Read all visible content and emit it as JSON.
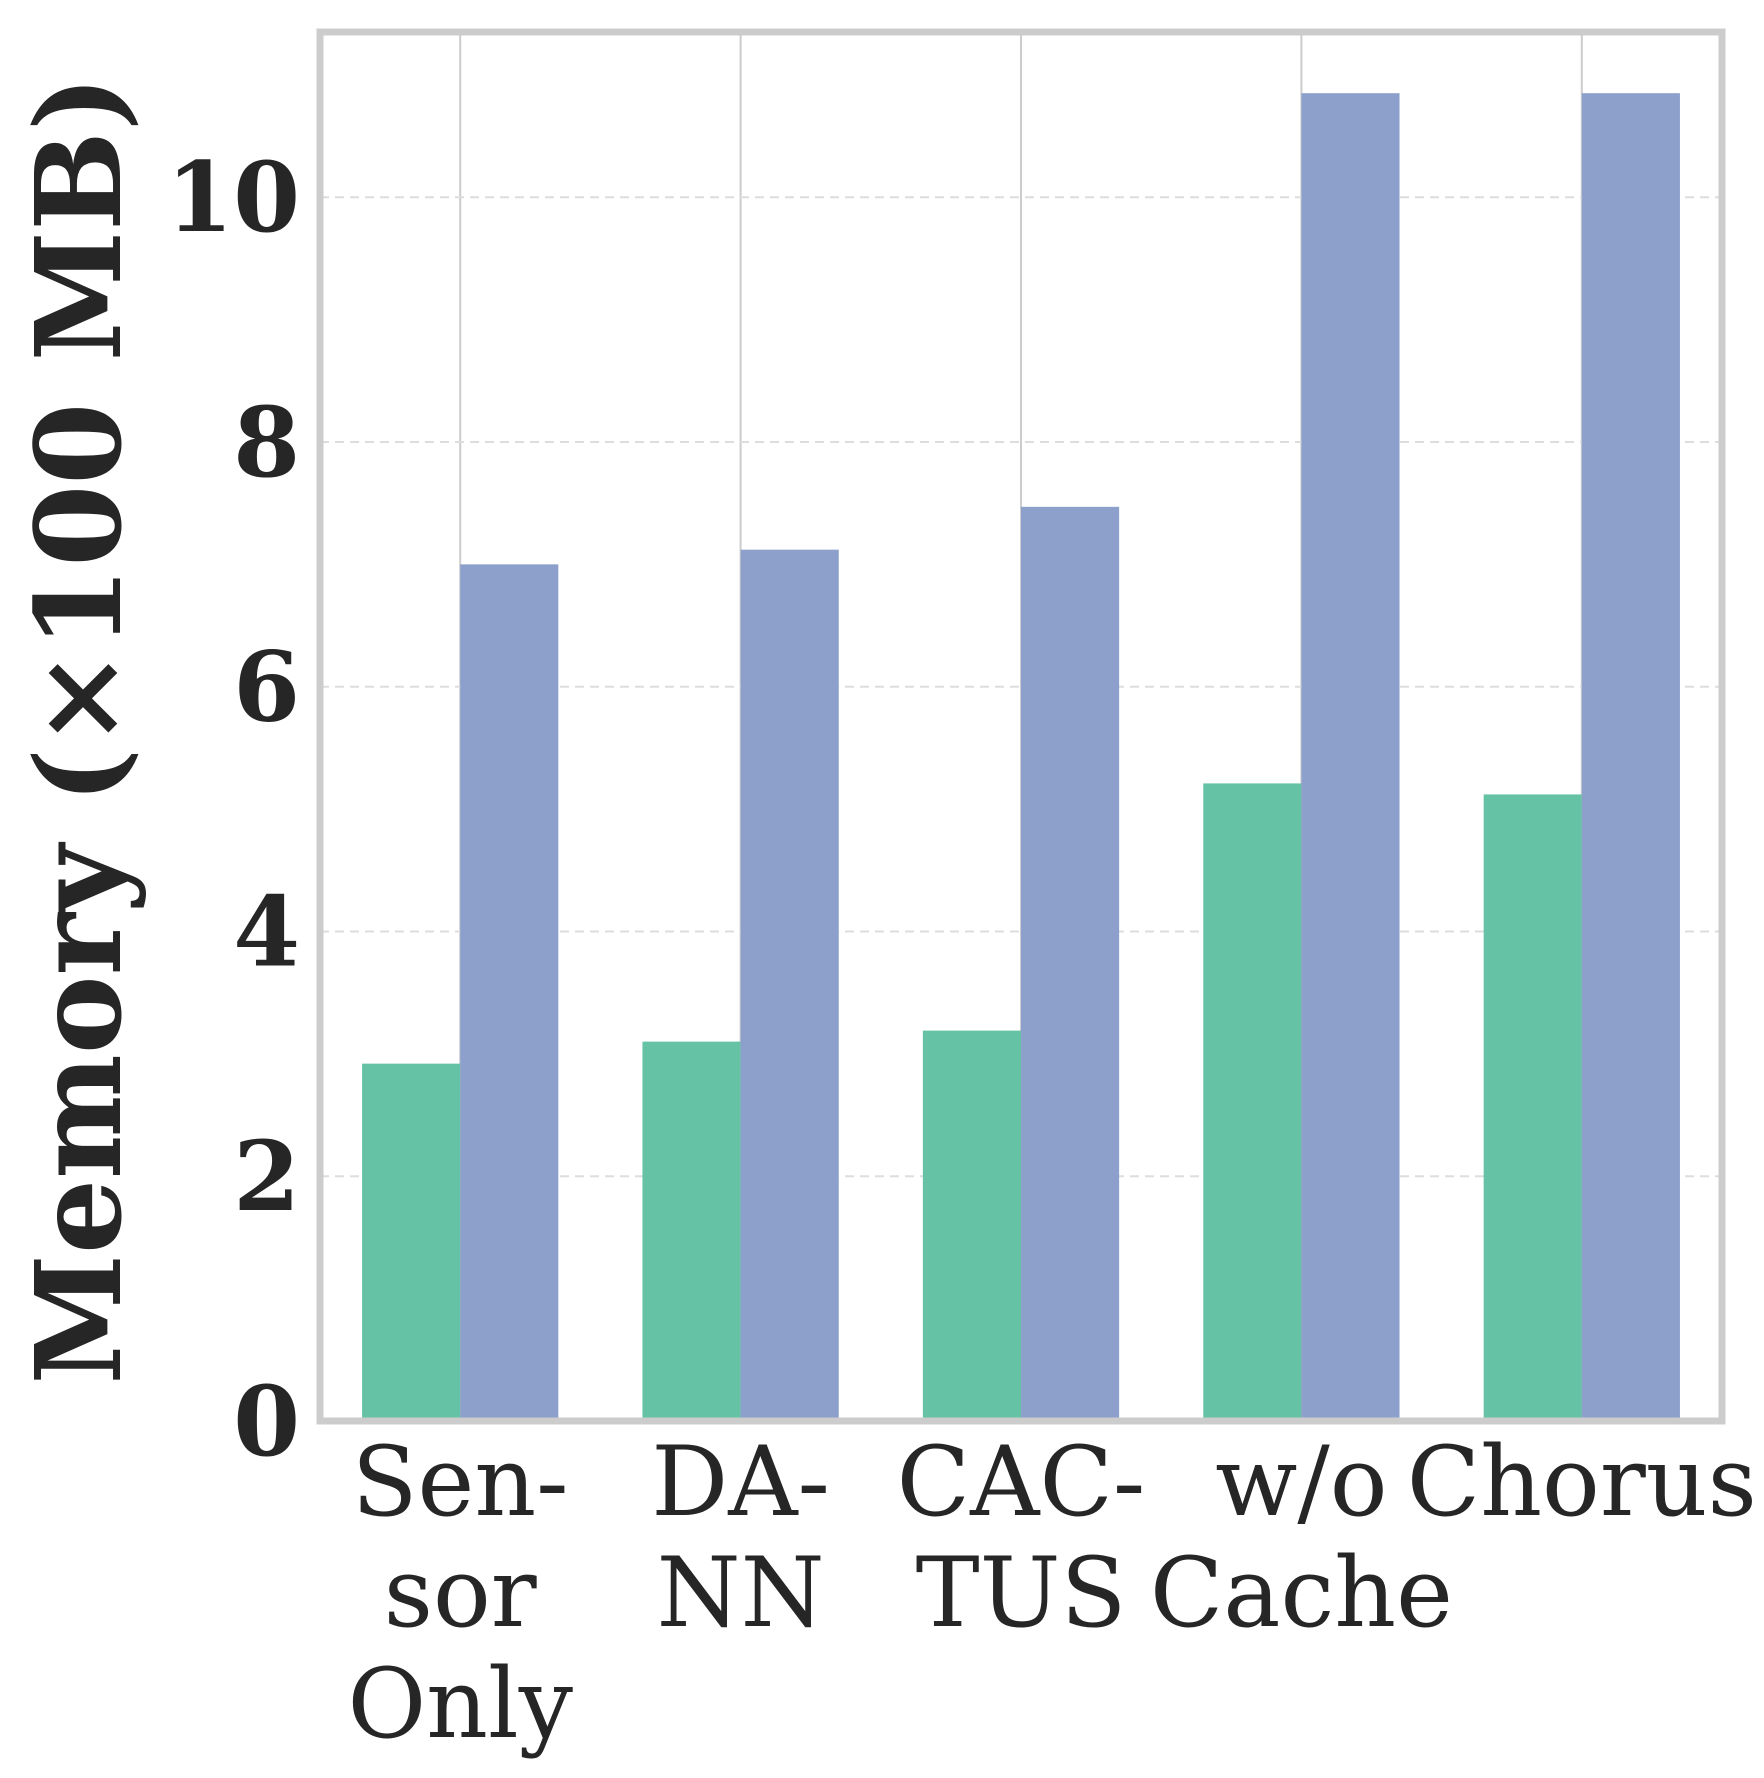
{
  "chart_data": {
    "type": "bar",
    "title": "",
    "xlabel": "",
    "ylabel": "Memory (×100 MB)",
    "categories": [
      [
        "Sen-",
        "sor",
        "Only"
      ],
      [
        "DA-",
        "NN"
      ],
      [
        "CAC-",
        "TUS"
      ],
      [
        "w/o",
        "Cache"
      ],
      [
        "Chorus"
      ]
    ],
    "series": [
      {
        "values": [
          2.92,
          3.1,
          3.19,
          5.21,
          5.12
        ],
        "color": "#66c2a5"
      },
      {
        "values": [
          7.0,
          7.12,
          7.47,
          10.85,
          10.85
        ],
        "color": "#8da0cb"
      }
    ],
    "ylim": [
      0,
      11.35
    ],
    "yticks": [
      0,
      2,
      4,
      6,
      8,
      10
    ],
    "grid": {
      "x": "solid",
      "y": "dashed"
    },
    "legend": "none"
  }
}
